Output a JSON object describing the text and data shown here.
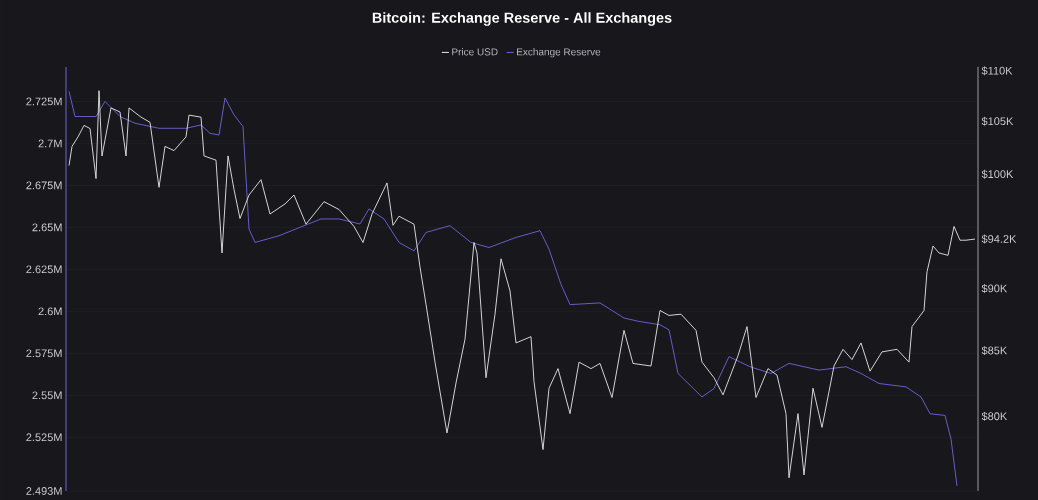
{
  "chart_data": {
    "type": "line",
    "title": "Bitcoin: Exchange Reserve - All Exchanges",
    "categories": [
      null,
      null,
      null,
      null,
      null,
      null,
      null,
      null,
      null,
      null,
      null,
      null,
      null,
      null,
      null,
      null,
      null,
      null,
      null,
      null,
      null,
      null,
      null,
      null,
      null,
      null,
      null,
      null,
      null,
      null,
      null,
      null,
      null,
      null,
      null,
      null,
      null,
      null,
      null,
      null,
      null,
      null,
      null,
      null,
      null,
      null,
      null,
      null,
      null,
      null,
      null,
      null,
      null,
      null,
      null,
      null,
      null,
      null,
      null,
      null,
      null,
      null,
      null,
      null,
      null,
      null,
      null,
      null,
      null,
      null,
      null,
      null,
      null,
      null,
      null,
      null,
      null,
      null,
      null,
      null,
      null,
      null,
      null,
      null,
      null,
      null,
      null,
      null,
      null,
      null,
      null,
      null,
      null,
      null,
      null,
      null,
      null,
      null,
      null,
      null,
      null,
      null,
      null,
      null,
      null,
      null,
      null,
      null,
      null,
      null,
      null,
      null,
      null,
      null,
      null,
      null,
      null,
      null,
      null,
      null,
      null,
      null,
      null,
      null,
      null,
      null,
      null,
      null,
      null,
      null,
      null,
      null,
      null,
      null,
      null,
      null,
      null,
      null,
      null,
      null,
      null,
      null,
      null,
      null,
      null,
      null,
      null,
      null,
      null,
      null,
      null,
      null,
      null,
      null,
      null,
      null,
      null,
      null,
      null,
      null,
      null,
      null,
      null,
      null,
      null,
      null,
      null,
      null,
      null,
      null,
      null,
      null,
      null,
      null,
      null,
      null,
      null,
      null,
      null,
      null,
      null,
      null,
      null,
      null,
      null,
      null,
      null,
      null,
      null,
      null,
      null,
      null,
      null,
      null,
      null,
      null,
      null,
      null,
      null,
      null,
      null,
      null,
      null,
      null,
      null,
      null,
      null,
      null,
      null,
      null,
      null,
      null,
      null,
      null,
      null,
      null,
      null,
      null,
      null,
      null,
      null,
      null,
      null,
      null,
      null,
      null,
      null,
      null,
      null,
      null,
      null,
      null,
      null,
      null,
      null,
      null,
      null,
      null,
      null,
      null,
      null,
      null,
      null,
      null,
      null,
      null,
      null,
      null,
      null,
      null,
      null,
      null,
      null,
      null,
      null,
      null,
      null,
      null,
      null,
      null,
      null,
      null,
      null,
      null,
      null,
      null,
      null,
      null,
      null,
      null,
      null,
      null,
      null,
      null,
      null,
      null,
      null,
      null,
      null,
      null,
      null,
      null,
      null,
      null,
      null,
      null,
      null,
      null,
      null,
      null,
      null,
      null,
      null,
      null,
      null,
      null,
      null,
      null,
      null,
      null,
      null,
      null,
      null,
      null,
      null
    ],
    "series": [
      {
        "name": "Price USD",
        "color": "#e8e8e8",
        "axis": "y2",
        "values": [
          null,
          100800,
          102600,
          null,
          103500,
          null,
          104600,
          null,
          104300,
          null,
          99600,
          108000,
          101700,
          null,
          null,
          106300,
          null,
          null,
          105900,
          null,
          101700,
          106300,
          null,
          null,
          null,
          105400,
          null,
          null,
          104900,
          null,
          null,
          98800,
          null,
          102600,
          null,
          null,
          102200,
          null,
          null,
          null,
          103500,
          105600,
          null,
          null,
          null,
          105400,
          101700,
          null,
          null,
          null,
          101300,
          null,
          93000,
          null,
          101700,
          null,
          98600,
          null,
          96000,
          null,
          null,
          98100,
          null,
          null,
          null,
          99500,
          null,
          null,
          96400,
          null,
          null,
          null,
          null,
          97300,
          null,
          null,
          98100,
          null,
          null,
          null,
          95500,
          null,
          null,
          null,
          null,
          null,
          97500,
          null,
          null,
          null,
          null,
          96800,
          null,
          null,
          null,
          null,
          95300,
          null,
          null,
          93900,
          null,
          null,
          96400,
          null,
          null,
          null,
          null,
          99200,
          null,
          95400,
          null,
          96200,
          null,
          null,
          null,
          null,
          95500,
          null,
          91800,
          null,
          88700,
          null,
          null,
          84100,
          null,
          null,
          null,
          78800,
          null,
          null,
          82500,
          null,
          null,
          85900,
          null,
          null,
          93900,
          93000,
          null,
          null,
          82900,
          null,
          null,
          87900,
          null,
          92500,
          null,
          null,
          89800,
          null,
          85600,
          null,
          null,
          null,
          null,
          86100,
          82600,
          null,
          null,
          77600,
          null,
          82100,
          null,
          null,
          83600,
          null,
          null,
          null,
          80200,
          null,
          null,
          84100,
          null,
          null,
          null,
          83600,
          null,
          null,
          84000,
          null,
          null,
          null,
          81400,
          null,
          null,
          null,
          86600,
          null,
          null,
          84000,
          null,
          null,
          null,
          null,
          null,
          83800,
          null,
          null,
          88200,
          null,
          null,
          87800,
          null,
          null,
          null,
          87900,
          null,
          null,
          null,
          null,
          86600,
          null,
          84100,
          null,
          null,
          null,
          82900,
          null,
          null,
          81600,
          null,
          null,
          null,
          null,
          84600,
          null,
          null,
          86900,
          null,
          null,
          81400,
          null,
          null,
          null,
          83600,
          null,
          null,
          83100,
          null,
          null,
          80200,
          75600,
          null,
          null,
          80200,
          null,
          75800,
          null,
          null,
          82100,
          null,
          null,
          79200,
          null,
          null,
          null,
          83800,
          null,
          null,
          85100,
          null,
          null,
          84300,
          null,
          null,
          85600,
          null,
          null,
          83400,
          null,
          null,
          null,
          84900,
          null,
          null,
          null,
          null,
          85100,
          null,
          null,
          null,
          84100,
          86900,
          null,
          null,
          null,
          88200,
          91400,
          null,
          93600,
          null,
          93000,
          null,
          null,
          92800,
          null,
          95300,
          null,
          94100,
          null,
          94100,
          null,
          null,
          94200,
          null
        ]
      },
      {
        "name": "Exchange Reserve",
        "color": "#6f64dc",
        "axis": "y",
        "values": [
          null,
          2731000,
          null,
          2716000,
          null,
          null,
          null,
          null,
          null,
          null,
          2716000,
          null,
          null,
          2725000,
          null,
          null,
          null,
          null,
          2716000,
          null,
          null,
          null,
          null,
          2712000,
          null,
          null,
          null,
          null,
          null,
          null,
          null,
          2709000,
          null,
          null,
          null,
          null,
          null,
          null,
          null,
          null,
          2709000,
          null,
          null,
          null,
          null,
          2711000,
          null,
          null,
          2706000,
          null,
          null,
          2705000,
          null,
          2727000,
          null,
          null,
          2717000,
          null,
          null,
          2710000,
          null,
          2649000,
          null,
          2641000,
          null,
          null,
          null,
          null,
          null,
          null,
          null,
          2645000,
          null,
          null,
          null,
          null,
          null,
          null,
          2650000,
          null,
          null,
          null,
          null,
          null,
          null,
          2655000,
          null,
          null,
          null,
          null,
          null,
          2655000,
          null,
          null,
          null,
          null,
          null,
          null,
          2652000,
          null,
          null,
          2661000,
          null,
          null,
          null,
          null,
          2655000,
          null,
          null,
          null,
          null,
          2641000,
          null,
          null,
          null,
          null,
          2636000,
          null,
          null,
          null,
          2647000,
          null,
          null,
          null,
          null,
          null,
          null,
          null,
          2651000,
          null,
          null,
          null,
          null,
          null,
          null,
          2641000,
          null,
          null,
          null,
          null,
          null,
          2638000,
          null,
          null,
          null,
          null,
          null,
          null,
          null,
          null,
          2644000,
          null,
          null,
          null,
          null,
          null,
          null,
          null,
          2648000,
          null,
          null,
          2637000,
          null,
          null,
          null,
          2616000,
          null,
          null,
          2604000,
          null,
          null,
          null,
          null,
          null,
          null,
          null,
          null,
          null,
          2605000,
          null,
          null,
          null,
          null,
          null,
          null,
          null,
          2596000,
          null,
          null,
          null,
          null,
          2594000,
          null,
          null,
          null,
          null,
          null,
          null,
          2592000,
          null,
          null,
          2589000,
          null,
          null,
          2563000,
          null,
          null,
          null,
          null,
          null,
          null,
          null,
          2549000,
          null,
          null,
          null,
          2554000,
          null,
          null,
          null,
          null,
          2573000,
          null,
          null,
          null,
          null,
          null,
          null,
          2567000,
          null,
          null,
          null,
          null,
          null,
          null,
          2563000,
          null,
          null,
          null,
          null,
          null,
          2569000,
          null,
          null,
          null,
          null,
          null,
          null,
          null,
          null,
          null,
          2565000,
          null,
          null,
          null,
          null,
          null,
          null,
          null,
          null,
          2567000,
          null,
          null,
          null,
          null,
          2563000,
          null,
          null,
          null,
          null,
          null,
          2557000,
          null,
          null,
          null,
          null,
          null,
          null,
          null,
          null,
          2555000,
          null,
          null,
          null,
          null,
          2549000,
          null,
          null,
          2539000,
          null,
          null,
          null,
          null,
          2538000,
          null,
          2524000,
          null,
          2496000,
          null,
          null,
          null,
          null,
          null,
          null,
          null
        ]
      }
    ],
    "ylim": [
      2493000,
      2745500
    ],
    "yticks": [
      {
        "value": 2493000,
        "label": "2.493M"
      },
      {
        "value": 2525000,
        "label": "2.525M"
      },
      {
        "value": 2550000,
        "label": "2.55M"
      },
      {
        "value": 2575000,
        "label": "2.575M"
      },
      {
        "value": 2600000,
        "label": "2.6M"
      },
      {
        "value": 2625000,
        "label": "2.625M"
      },
      {
        "value": 2650000,
        "label": "2.65M"
      },
      {
        "value": 2675000,
        "label": "2.675M"
      },
      {
        "value": 2700000,
        "label": "2.7M"
      },
      {
        "value": 2725000,
        "label": "2.725M"
      }
    ],
    "y2lim": [
      74700,
      110400
    ],
    "y2ticks": [
      {
        "value": 80000,
        "label": "$80K"
      },
      {
        "value": 85000,
        "label": "$85K"
      },
      {
        "value": 90000,
        "label": "$90K"
      },
      {
        "value": 94200,
        "label": "$94.2K"
      },
      {
        "value": 100000,
        "label": "$100K"
      },
      {
        "value": 105000,
        "label": "$105K"
      },
      {
        "value": 110000,
        "label": "$110K"
      }
    ],
    "log": "y2",
    "grid": "y",
    "legend": "top"
  }
}
